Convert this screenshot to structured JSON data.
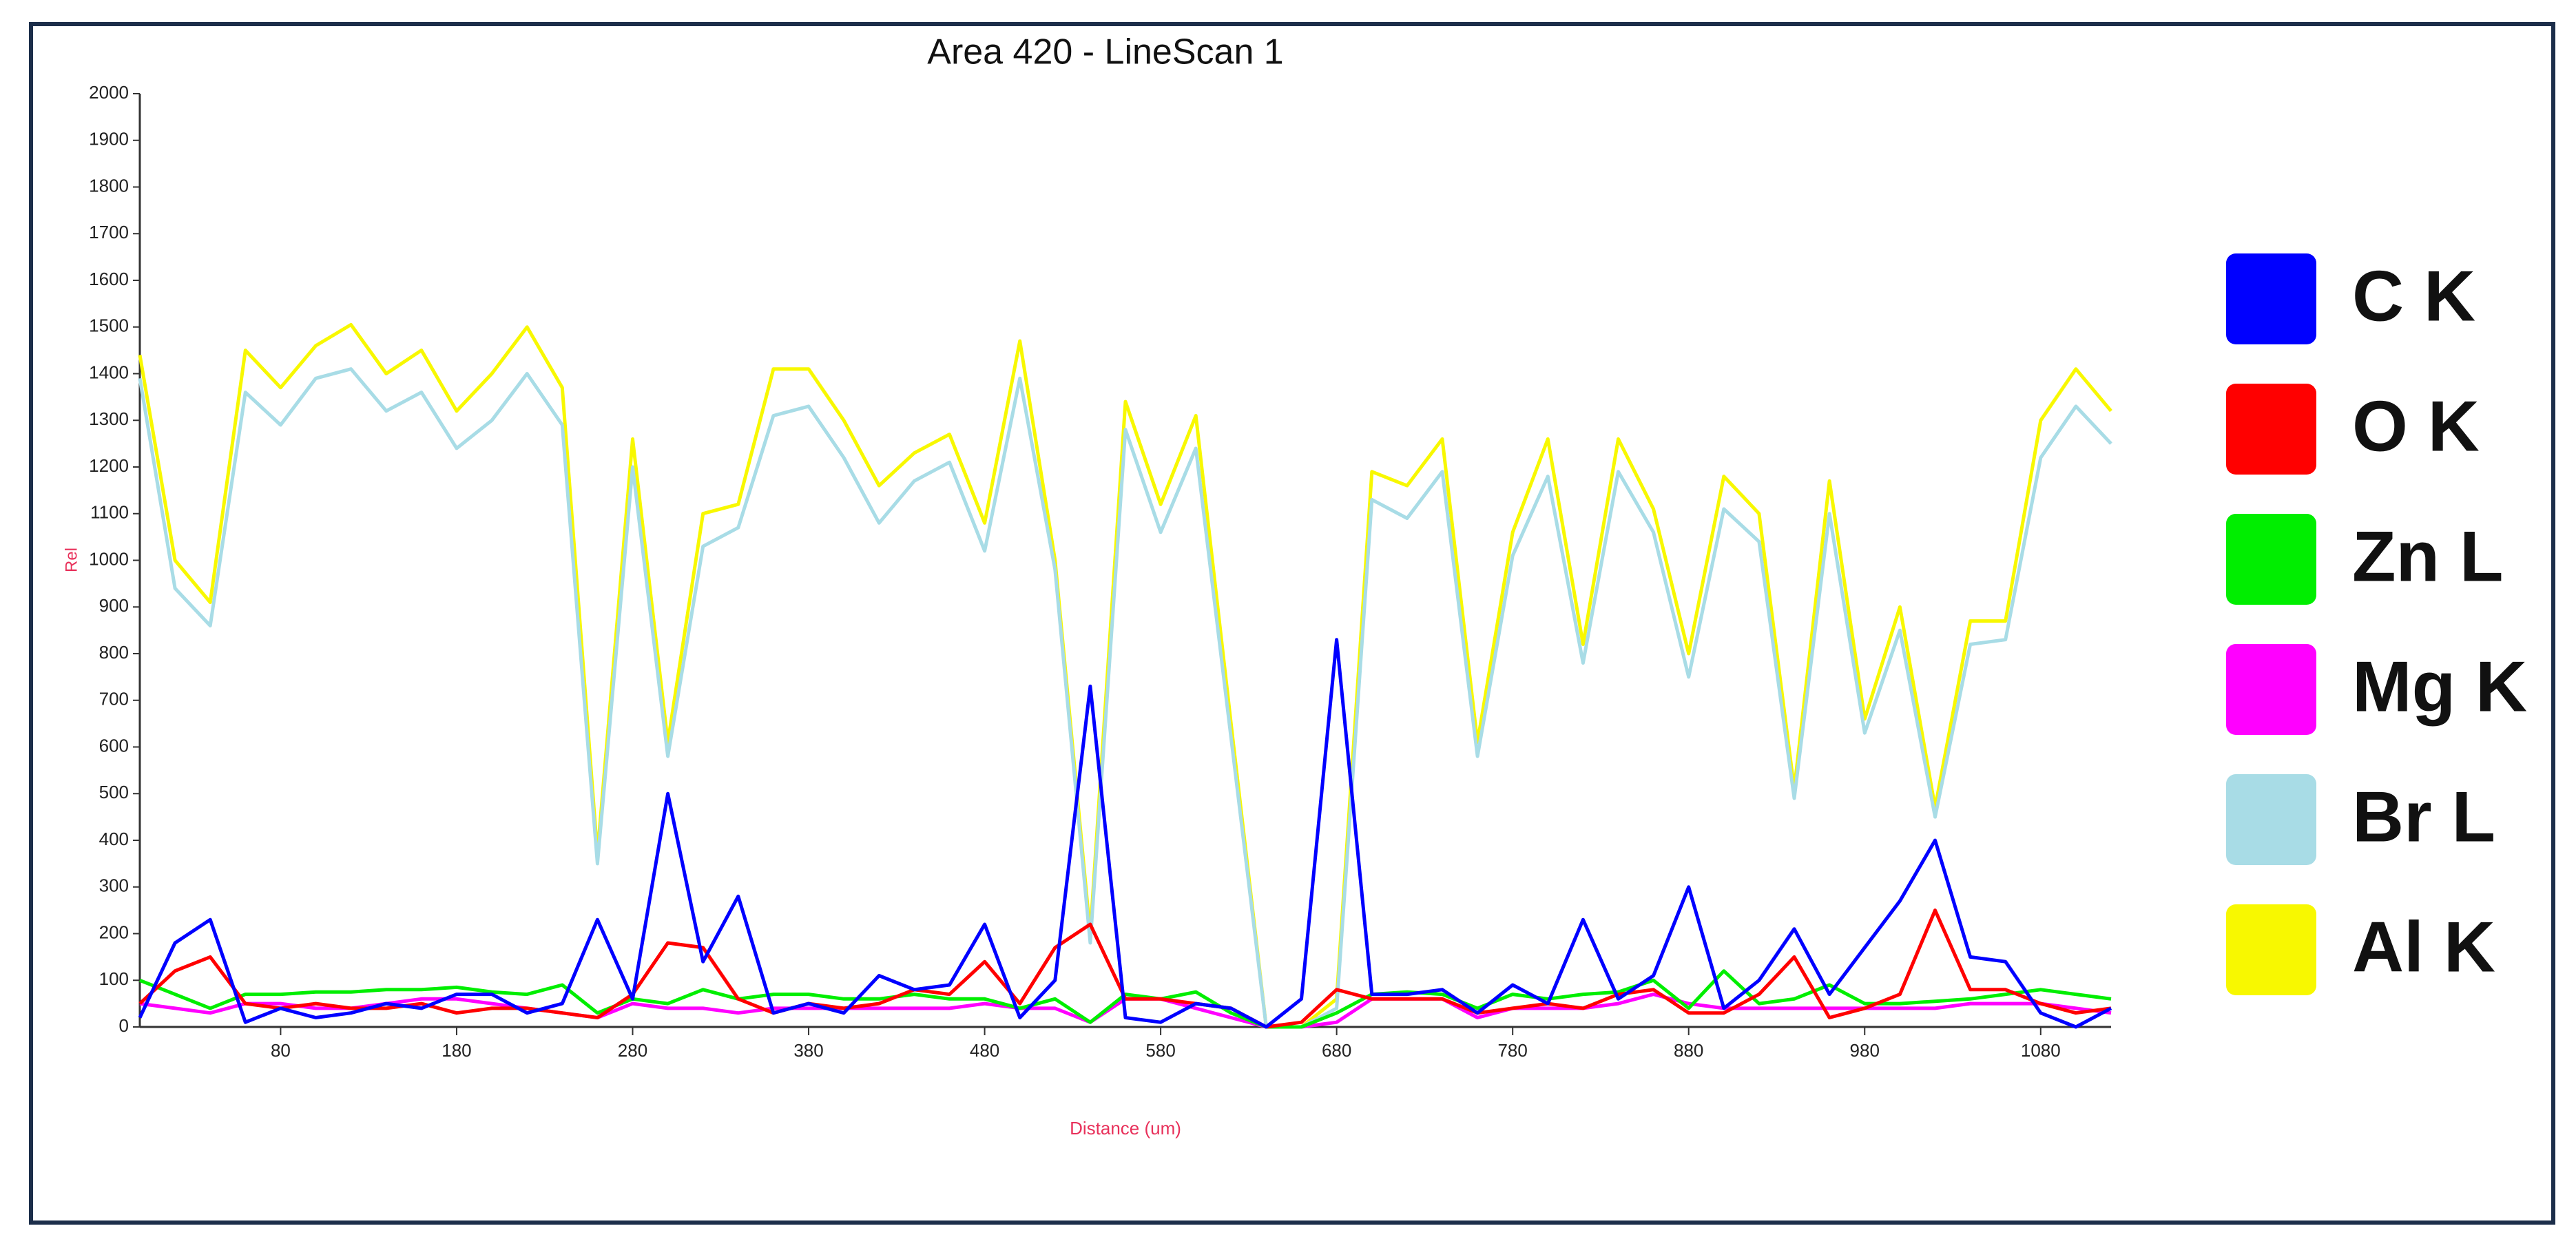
{
  "chart_data": {
    "type": "line",
    "title": "Area 420 - LineScan 1",
    "x_label": "Distance (um)",
    "y_label": "Rel",
    "legend": "right",
    "x": [
      0,
      20,
      40,
      60,
      80,
      100,
      120,
      140,
      160,
      180,
      200,
      220,
      240,
      260,
      280,
      300,
      320,
      340,
      360,
      380,
      400,
      420,
      440,
      460,
      480,
      500,
      520,
      540,
      560,
      580,
      600,
      620,
      640,
      660,
      680,
      700,
      720,
      740,
      760,
      780,
      800,
      820,
      840,
      860,
      880,
      900,
      920,
      940,
      960,
      980,
      1000,
      1020,
      1040,
      1060,
      1080,
      1100,
      1120
    ],
    "xlim": [
      0,
      1120
    ],
    "xticks": [
      80,
      180,
      280,
      380,
      480,
      580,
      680,
      780,
      880,
      980,
      1080
    ],
    "ylim": [
      0,
      2000
    ],
    "yticks": [
      0,
      100,
      200,
      300,
      400,
      500,
      600,
      700,
      800,
      900,
      1000,
      1100,
      1200,
      1300,
      1400,
      1500,
      1600,
      1700,
      1800,
      1900,
      2000
    ],
    "series": [
      {
        "name": "C K",
        "color": "#0000ff",
        "values": [
          20,
          180,
          230,
          10,
          40,
          20,
          30,
          50,
          40,
          70,
          70,
          30,
          50,
          230,
          60,
          500,
          140,
          280,
          30,
          50,
          30,
          110,
          80,
          90,
          220,
          20,
          100,
          730,
          20,
          10,
          50,
          40,
          0,
          60,
          830,
          70,
          70,
          80,
          30,
          90,
          50,
          230,
          60,
          110,
          300,
          40,
          100,
          210,
          70,
          170,
          270,
          400,
          150,
          140,
          30,
          0,
          40
        ]
      },
      {
        "name": "O K",
        "color": "#ff0000",
        "values": [
          50,
          120,
          150,
          50,
          40,
          50,
          40,
          40,
          50,
          30,
          40,
          40,
          30,
          20,
          70,
          180,
          170,
          60,
          30,
          50,
          40,
          50,
          80,
          70,
          140,
          50,
          170,
          220,
          60,
          60,
          50,
          40,
          0,
          10,
          80,
          60,
          60,
          60,
          30,
          40,
          50,
          40,
          70,
          80,
          30,
          30,
          70,
          150,
          20,
          40,
          70,
          250,
          80,
          80,
          50,
          30,
          40
        ]
      },
      {
        "name": "Zn L",
        "color": "#00ee00",
        "values": [
          100,
          70,
          40,
          70,
          70,
          75,
          75,
          80,
          80,
          85,
          75,
          70,
          90,
          30,
          60,
          50,
          80,
          60,
          70,
          70,
          60,
          60,
          70,
          60,
          60,
          40,
          60,
          10,
          70,
          60,
          75,
          30,
          0,
          0,
          30,
          70,
          75,
          70,
          40,
          70,
          60,
          70,
          75,
          100,
          40,
          120,
          50,
          60,
          90,
          50,
          50,
          55,
          60,
          70,
          80,
          70,
          60
        ]
      },
      {
        "name": "Mg K",
        "color": "#ff00ff",
        "values": [
          50,
          40,
          30,
          50,
          50,
          40,
          40,
          50,
          60,
          60,
          50,
          40,
          30,
          20,
          50,
          40,
          40,
          30,
          40,
          40,
          40,
          40,
          40,
          40,
          50,
          40,
          40,
          10,
          60,
          60,
          40,
          20,
          0,
          0,
          10,
          60,
          60,
          60,
          20,
          40,
          40,
          40,
          50,
          70,
          50,
          40,
          40,
          40,
          40,
          40,
          40,
          40,
          50,
          50,
          50,
          40,
          30
        ]
      },
      {
        "name": "Br L",
        "color": "#a8dce6",
        "values": [
          1390,
          940,
          860,
          1360,
          1290,
          1390,
          1410,
          1320,
          1360,
          1240,
          1300,
          1400,
          1290,
          350,
          1200,
          580,
          1030,
          1070,
          1310,
          1330,
          1220,
          1080,
          1170,
          1210,
          1020,
          1390,
          980,
          180,
          1280,
          1060,
          1240,
          620,
          0,
          0,
          40,
          1130,
          1090,
          1190,
          580,
          1010,
          1180,
          780,
          1190,
          1060,
          750,
          1110,
          1040,
          490,
          1100,
          630,
          850,
          450,
          820,
          830,
          1220,
          1330,
          1250
        ]
      },
      {
        "name": "Al K",
        "color": "#f8f800",
        "values": [
          1440,
          1000,
          910,
          1450,
          1370,
          1460,
          1505,
          1400,
          1450,
          1320,
          1400,
          1500,
          1370,
          370,
          1260,
          610,
          1100,
          1120,
          1410,
          1410,
          1300,
          1160,
          1230,
          1270,
          1080,
          1470,
          1000,
          200,
          1340,
          1120,
          1310,
          650,
          0,
          0,
          60,
          1190,
          1160,
          1260,
          610,
          1060,
          1260,
          820,
          1260,
          1110,
          800,
          1180,
          1100,
          510,
          1170,
          660,
          900,
          470,
          870,
          870,
          1300,
          1410,
          1320
        ]
      }
    ]
  }
}
